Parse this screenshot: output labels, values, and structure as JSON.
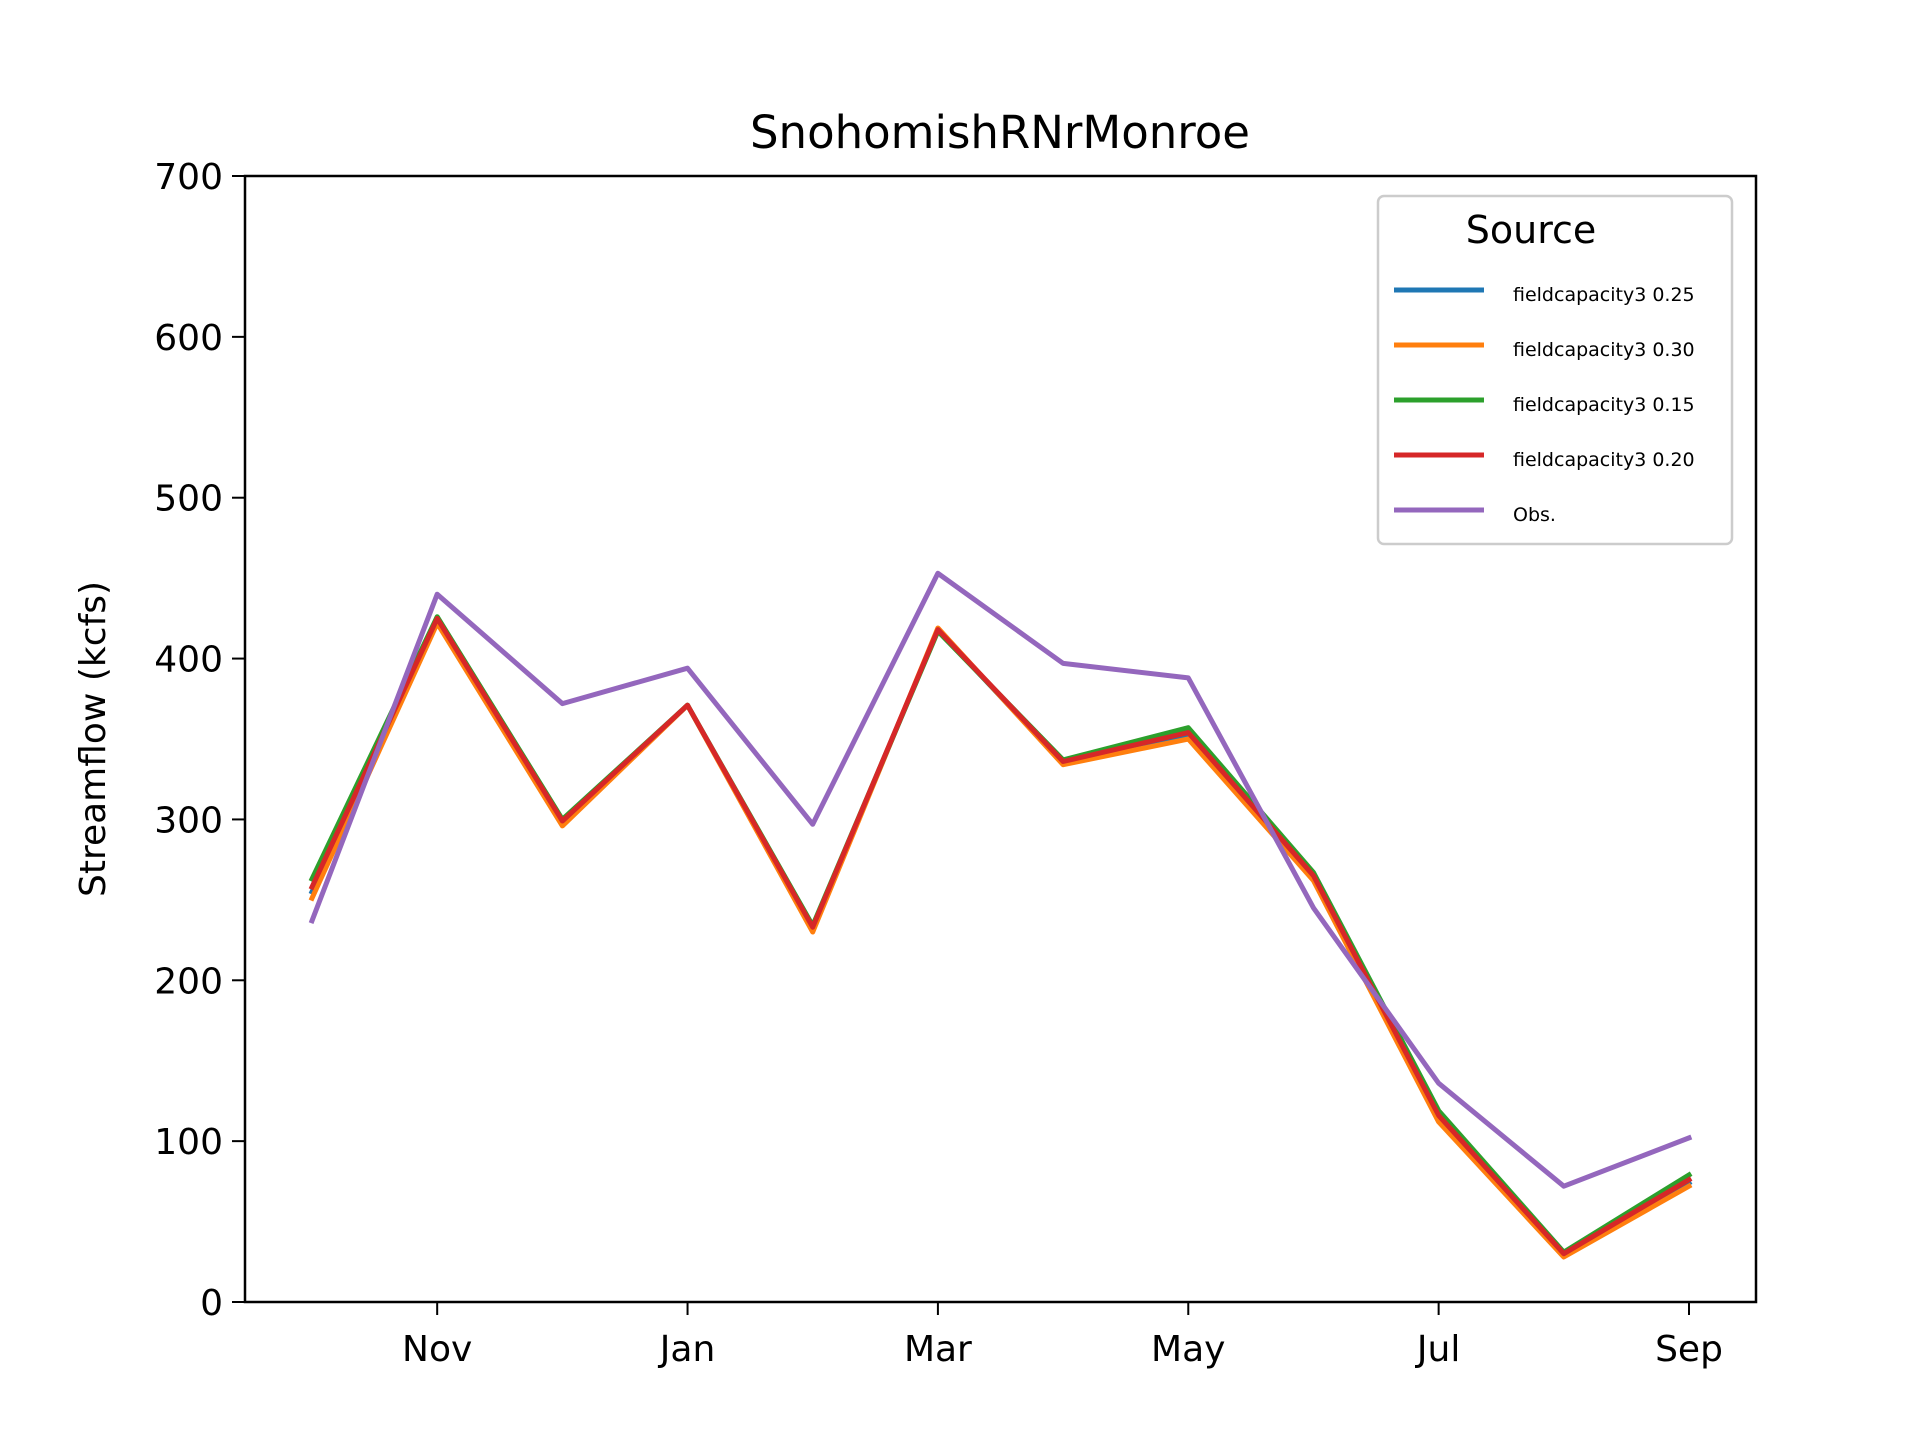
{
  "chart_data": {
    "type": "line",
    "title": "SnohomishRNrMonroe",
    "xlabel": "",
    "ylabel": "Streamflow (kcfs)",
    "ylim": [
      0,
      700
    ],
    "yticks": [
      0,
      100,
      200,
      300,
      400,
      500,
      600,
      700
    ],
    "x": [
      "Oct",
      "Nov",
      "Dec",
      "Jan",
      "Feb",
      "Mar",
      "Apr",
      "May",
      "Jun",
      "Jul",
      "Aug",
      "Sep"
    ],
    "xtick_labels": [
      "Nov",
      "Jan",
      "Mar",
      "May",
      "Jul",
      "Sep"
    ],
    "xtick_months": [
      "Nov",
      "Jan",
      "Mar",
      "May",
      "Jul",
      "Sep"
    ],
    "grid": false,
    "legend": {
      "title": "Source",
      "placement": "top-right"
    },
    "series": [
      {
        "name": "fieldcapacity3 0.25",
        "color": "#1f77b4",
        "values": [
          255,
          423,
          298,
          371,
          232,
          418,
          335,
          352,
          264,
          114,
          29,
          74
        ]
      },
      {
        "name": "fieldcapacity3 0.30",
        "color": "#ff7f0e",
        "values": [
          251,
          422,
          296,
          371,
          230,
          419,
          334,
          350,
          262,
          112,
          28,
          72
        ]
      },
      {
        "name": "fieldcapacity3 0.15",
        "color": "#2ca02c",
        "values": [
          263,
          426,
          300,
          371,
          234,
          417,
          337,
          357,
          267,
          119,
          31,
          79
        ]
      },
      {
        "name": "fieldcapacity3 0.20",
        "color": "#d62728",
        "values": [
          258,
          425,
          299,
          371,
          233,
          418,
          336,
          354,
          265,
          116,
          30,
          76
        ]
      },
      {
        "name": "Obs.",
        "color": "#9467bd",
        "values": [
          237,
          440,
          372,
          394,
          297,
          453,
          397,
          388,
          245,
          136,
          72,
          102
        ]
      }
    ]
  }
}
